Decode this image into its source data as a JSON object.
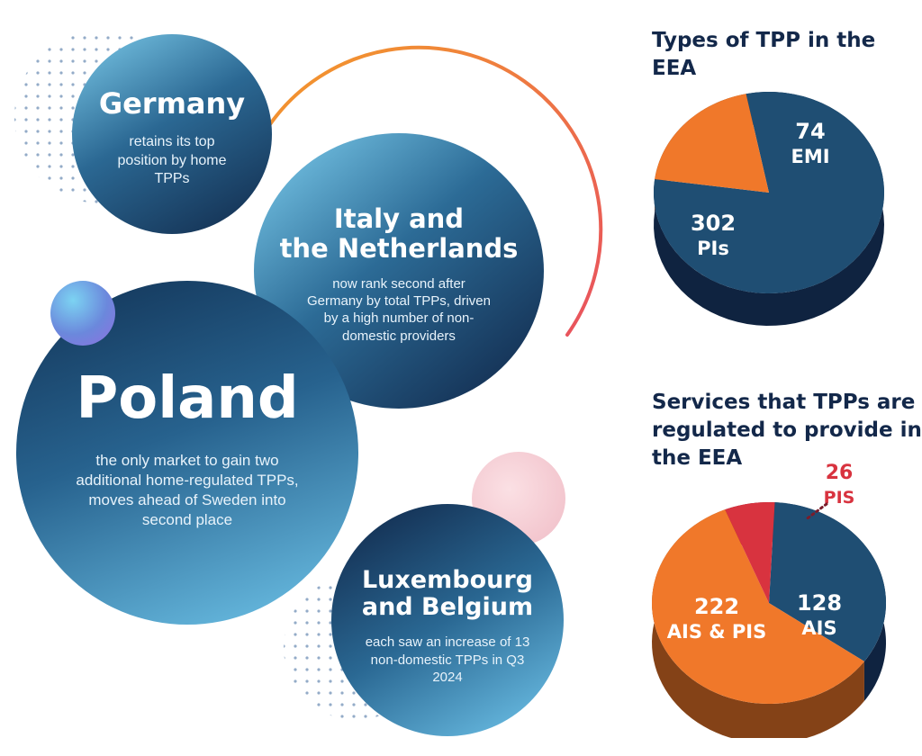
{
  "bubbles": {
    "germany": {
      "title": "Germany",
      "text": "retains its top position by home TPPs"
    },
    "italy": {
      "title_line1": "Italy and",
      "title_line2": "the Netherlands",
      "text": "now rank second after Germany by total TPPs, driven by a high number of non-domestic providers"
    },
    "poland": {
      "title": "Poland",
      "text": "the only market to gain two additional home-regulated TPPs, moves ahead of Sweden into second place"
    },
    "lux": {
      "title_line1": "Luxembourg",
      "title_line2": "and Belgium",
      "text": "each saw an increase of 13 non-domestic TPPs in Q3 2024"
    }
  },
  "colors": {
    "navy": "#1f4e73",
    "orange": "#f0782a",
    "red": "#d8333f",
    "heading": "#13284a"
  },
  "chart_data": [
    {
      "type": "pie",
      "title": "Types of TPP in the EEA",
      "slices": [
        {
          "label": "PIs",
          "value": 302,
          "color": "#1f4e73"
        },
        {
          "label": "EMI",
          "value": 74,
          "color": "#f0782a"
        }
      ]
    },
    {
      "type": "pie",
      "title": "Services that TPPs are regulated to provide in the EEA",
      "slices": [
        {
          "label": "AIS",
          "value": 128,
          "color": "#1f4e73"
        },
        {
          "label": "AIS & PIS",
          "value": 222,
          "color": "#f0782a"
        },
        {
          "label": "PIS",
          "value": 26,
          "color": "#d8333f"
        }
      ]
    }
  ]
}
